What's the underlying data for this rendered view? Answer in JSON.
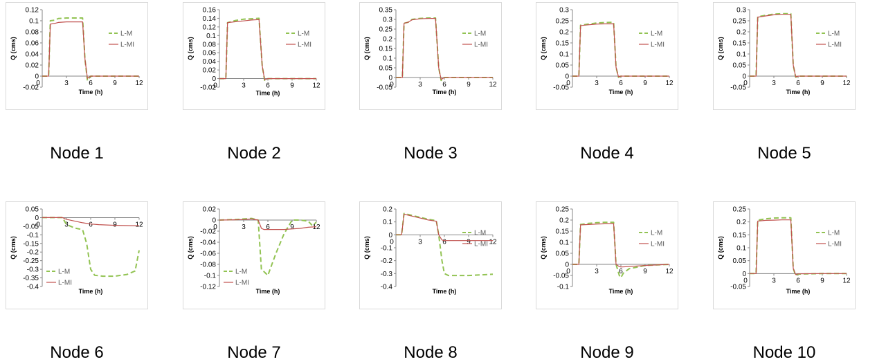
{
  "figure_title": "",
  "chart_data": [
    {
      "type": "line",
      "caption": "Node 1",
      "xlabel": "Time (h)",
      "ylabel": "Q (cms)",
      "xlim": [
        0,
        12
      ],
      "xticks": [
        0,
        3,
        6,
        9,
        12
      ],
      "ylim": [
        -0.02,
        0.12
      ],
      "yticks": [
        -0.02,
        0,
        0.02,
        0.04,
        0.06,
        0.08,
        0.1,
        0.12
      ],
      "yformat": "trim",
      "legend": "right",
      "series": [
        {
          "name": "L-M",
          "color": "#92c353",
          "dash": "7,4",
          "x": [
            0,
            0.8,
            1.0,
            1.5,
            2.0,
            3.0,
            4.0,
            5.0,
            5.3,
            5.6,
            6.0,
            9.0,
            12.0
          ],
          "y": [
            0,
            0,
            0.1,
            0.101,
            0.104,
            0.105,
            0.105,
            0.105,
            0.03,
            -0.008,
            0,
            0,
            0
          ]
        },
        {
          "name": "L-MI",
          "color": "#c0504d",
          "dash": "",
          "x": [
            0,
            0.8,
            1.0,
            1.5,
            2.0,
            3.0,
            4.0,
            5.0,
            5.3,
            5.6,
            6.0,
            9.0,
            12.0
          ],
          "y": [
            0,
            0,
            0.094,
            0.095,
            0.097,
            0.098,
            0.098,
            0.098,
            0.03,
            -0.004,
            0,
            0,
            0
          ]
        }
      ]
    },
    {
      "type": "line",
      "caption": "Node 2",
      "xlabel": "Time (h)",
      "ylabel": "Q (cms)",
      "xlim": [
        0,
        12
      ],
      "xticks": [
        0,
        3,
        6,
        9,
        12
      ],
      "ylim": [
        -0.02,
        0.16
      ],
      "yticks": [
        -0.02,
        0,
        0.02,
        0.04,
        0.06,
        0.08,
        0.1,
        0.12,
        0.14,
        0.16
      ],
      "yformat": "trim",
      "legend": "right",
      "series": [
        {
          "name": "L-M",
          "color": "#92c353",
          "dash": "7,4",
          "x": [
            0,
            0.8,
            1.0,
            2.0,
            3.0,
            4.0,
            4.9,
            5.3,
            5.6,
            6.0,
            9.0,
            12.0
          ],
          "y": [
            0,
            0,
            0.13,
            0.135,
            0.138,
            0.139,
            0.14,
            0.03,
            -0.004,
            0,
            0,
            0
          ]
        },
        {
          "name": "L-MI",
          "color": "#c0504d",
          "dash": "",
          "x": [
            0,
            0.8,
            1.0,
            2.0,
            3.0,
            4.0,
            4.9,
            5.3,
            5.6,
            6.0,
            9.0,
            12.0
          ],
          "y": [
            0,
            0,
            0.13,
            0.132,
            0.134,
            0.136,
            0.137,
            0.03,
            -0.003,
            0,
            0,
            0
          ]
        }
      ]
    },
    {
      "type": "line",
      "caption": "Node 3",
      "xlabel": "Time (h)",
      "ylabel": "Q (cms)",
      "xlim": [
        0,
        12
      ],
      "xticks": [
        0,
        3,
        6,
        9,
        12
      ],
      "ylim": [
        -0.05,
        0.35
      ],
      "yticks": [
        -0.05,
        0,
        0.05,
        0.1,
        0.15,
        0.2,
        0.25,
        0.3,
        0.35
      ],
      "yformat": "trim",
      "legend": "right",
      "series": [
        {
          "name": "L-M",
          "color": "#92c353",
          "dash": "7,4",
          "x": [
            0,
            0.8,
            1.0,
            1.5,
            2.0,
            3.0,
            4.0,
            4.9,
            5.3,
            5.6,
            6.0,
            9.0,
            12.0
          ],
          "y": [
            0,
            0,
            0.28,
            0.285,
            0.3,
            0.305,
            0.307,
            0.307,
            0.05,
            -0.015,
            0,
            0,
            0
          ]
        },
        {
          "name": "L-MI",
          "color": "#c0504d",
          "dash": "",
          "x": [
            0,
            0.8,
            1.0,
            1.5,
            2.0,
            3.0,
            4.0,
            4.9,
            5.3,
            5.6,
            6.0,
            9.0,
            12.0
          ],
          "y": [
            0,
            0,
            0.28,
            0.285,
            0.298,
            0.303,
            0.305,
            0.305,
            0.05,
            -0.01,
            0,
            0,
            0
          ]
        }
      ]
    },
    {
      "type": "line",
      "caption": "Node 4",
      "xlabel": "Time (h)",
      "ylabel": "Q (cms)",
      "xlim": [
        0,
        12
      ],
      "xticks": [
        0,
        3,
        6,
        9,
        12
      ],
      "ylim": [
        -0.05,
        0.3
      ],
      "yticks": [
        -0.05,
        0,
        0.05,
        0.1,
        0.15,
        0.2,
        0.25,
        0.3
      ],
      "yformat": "trim",
      "legend": "right",
      "series": [
        {
          "name": "L-M",
          "color": "#92c353",
          "dash": "7,4",
          "x": [
            0,
            0.8,
            1.0,
            2.0,
            3.0,
            4.0,
            5.1,
            5.4,
            5.7,
            6.0,
            9.0,
            12.0
          ],
          "y": [
            0,
            0,
            0.23,
            0.235,
            0.24,
            0.242,
            0.243,
            0.04,
            -0.005,
            0,
            0,
            0
          ]
        },
        {
          "name": "L-MI",
          "color": "#c0504d",
          "dash": "",
          "x": [
            0,
            0.8,
            1.0,
            2.0,
            3.0,
            4.0,
            5.1,
            5.4,
            5.7,
            6.0,
            9.0,
            12.0
          ],
          "y": [
            0,
            0,
            0.228,
            0.232,
            0.235,
            0.236,
            0.236,
            0.04,
            -0.003,
            0,
            0,
            0
          ]
        }
      ]
    },
    {
      "type": "line",
      "caption": "Node 5",
      "xlabel": "Time (h)",
      "ylabel": "Q (cms)",
      "xlim": [
        0,
        12
      ],
      "xticks": [
        0,
        3,
        6,
        9,
        12
      ],
      "ylim": [
        -0.05,
        0.3
      ],
      "yticks": [
        -0.05,
        0,
        0.05,
        0.1,
        0.15,
        0.2,
        0.25,
        0.3
      ],
      "yformat": "trim",
      "legend": "right",
      "series": [
        {
          "name": "L-M",
          "color": "#92c353",
          "dash": "7,4",
          "x": [
            0,
            0.8,
            1.0,
            2.0,
            3.0,
            4.0,
            5.1,
            5.4,
            5.7,
            6.0,
            9.0,
            12.0
          ],
          "y": [
            0,
            0,
            0.268,
            0.275,
            0.28,
            0.282,
            0.282,
            0.05,
            -0.005,
            0,
            0,
            0
          ]
        },
        {
          "name": "L-MI",
          "color": "#c0504d",
          "dash": "",
          "x": [
            0,
            0.8,
            1.0,
            2.0,
            3.0,
            4.0,
            5.1,
            5.4,
            5.7,
            6.0,
            9.0,
            12.0
          ],
          "y": [
            0,
            0,
            0.266,
            0.272,
            0.277,
            0.279,
            0.279,
            0.05,
            -0.003,
            0,
            0,
            0
          ]
        }
      ]
    },
    {
      "type": "line",
      "caption": "Node 6",
      "xlabel": "Time (h)",
      "ylabel": "Q (cms)",
      "xlim": [
        0,
        12
      ],
      "xticks": [
        0,
        3,
        6,
        9,
        12
      ],
      "ylim": [
        -0.4,
        0.05
      ],
      "yticks": [
        -0.4,
        -0.35,
        -0.3,
        -0.25,
        -0.2,
        -0.15,
        -0.1,
        -0.05,
        0,
        0.05
      ],
      "yformat": "trim",
      "legend": "bottom-left",
      "series": [
        {
          "name": "L-M",
          "color": "#92c353",
          "dash": "7,4",
          "x": [
            0,
            2.5,
            3.0,
            4.0,
            5.0,
            5.5,
            6.0,
            6.5,
            7.5,
            9.0,
            10.5,
            11.5,
            12.0
          ],
          "y": [
            0,
            0,
            -0.04,
            -0.06,
            -0.07,
            -0.15,
            -0.3,
            -0.335,
            -0.34,
            -0.34,
            -0.33,
            -0.31,
            -0.19
          ]
        },
        {
          "name": "L-MI",
          "color": "#c0504d",
          "dash": "",
          "x": [
            0,
            2.5,
            3.0,
            4.0,
            5.0,
            6.0,
            7.0,
            8.0,
            9.0,
            10.0,
            11.0,
            12.0
          ],
          "y": [
            0,
            0,
            -0.01,
            -0.02,
            -0.03,
            -0.037,
            -0.041,
            -0.043,
            -0.045,
            -0.046,
            -0.047,
            -0.047
          ]
        }
      ]
    },
    {
      "type": "line",
      "caption": "Node 7",
      "xlabel": "Time (h)",
      "ylabel": "Q (cms)",
      "xlim": [
        0,
        12
      ],
      "xticks": [
        0,
        3,
        6,
        9,
        12
      ],
      "ylim": [
        -0.12,
        0.02
      ],
      "yticks": [
        -0.12,
        -0.1,
        -0.08,
        -0.06,
        -0.04,
        -0.02,
        0,
        0.02
      ],
      "yformat": "trim",
      "legend": "bottom-left",
      "series": [
        {
          "name": "L-M",
          "color": "#92c353",
          "dash": "7,4",
          "x": [
            0,
            2.0,
            3.0,
            4.0,
            4.8,
            5.2,
            5.5,
            6.0,
            6.5,
            7.0,
            8.0,
            9.0,
            10.0,
            11.0,
            11.5,
            12.0
          ],
          "y": [
            0,
            0.001,
            0.002,
            0.003,
            0.0,
            -0.09,
            -0.093,
            -0.1,
            -0.08,
            -0.06,
            -0.025,
            0,
            0,
            -0.002,
            -0.01,
            -0.004
          ]
        },
        {
          "name": "L-MI",
          "color": "#c0504d",
          "dash": "",
          "x": [
            0,
            2.0,
            3.0,
            4.0,
            4.8,
            5.2,
            5.5,
            6.0,
            7.0,
            8.0,
            9.0,
            10.0,
            11.0,
            12.0
          ],
          "y": [
            0,
            0.0005,
            0.001,
            0.002,
            0.0,
            -0.015,
            -0.017,
            -0.017,
            -0.017,
            -0.017,
            -0.016,
            -0.015,
            -0.013,
            -0.012
          ]
        }
      ]
    },
    {
      "type": "line",
      "caption": "Node 8",
      "xlabel": "Time (h)",
      "ylabel": "Q (cms)",
      "xlim": [
        0,
        12
      ],
      "xticks": [
        0,
        3,
        6,
        9,
        12
      ],
      "ylim": [
        -0.4,
        0.2
      ],
      "yticks": [
        -0.4,
        -0.3,
        -0.2,
        -0.1,
        0,
        0.1,
        0.2
      ],
      "yformat": "trim",
      "legend": "right",
      "series": [
        {
          "name": "L-M",
          "color": "#92c353",
          "dash": "7,4",
          "x": [
            0,
            0.7,
            1.0,
            2.0,
            3.0,
            4.0,
            5.0,
            5.3,
            5.7,
            6.0,
            6.5,
            9.0,
            12.0
          ],
          "y": [
            0,
            0,
            0.165,
            0.15,
            0.135,
            0.12,
            0.11,
            0.0,
            -0.2,
            -0.3,
            -0.315,
            -0.315,
            -0.305
          ]
        },
        {
          "name": "L-MI",
          "color": "#c0504d",
          "dash": "",
          "x": [
            0,
            0.7,
            1.0,
            2.0,
            3.0,
            4.0,
            5.0,
            5.3,
            5.7,
            6.0,
            9.0,
            12.0
          ],
          "y": [
            0,
            0,
            0.16,
            0.145,
            0.13,
            0.115,
            0.105,
            0.0,
            -0.04,
            -0.045,
            -0.045,
            -0.045
          ]
        }
      ]
    },
    {
      "type": "line",
      "caption": "Node 9",
      "xlabel": "Time (h)",
      "ylabel": "Q (cms)",
      "xlim": [
        0,
        12
      ],
      "xticks": [
        0,
        3,
        6,
        9,
        12
      ],
      "ylim": [
        -0.1,
        0.25
      ],
      "yticks": [
        -0.1,
        -0.05,
        0,
        0.05,
        0.1,
        0.15,
        0.2,
        0.25
      ],
      "yformat": "trim",
      "legend": "right",
      "series": [
        {
          "name": "L-M",
          "color": "#92c353",
          "dash": "7,4",
          "x": [
            0,
            0.8,
            1.0,
            2.0,
            3.0,
            4.0,
            5.1,
            5.4,
            5.8,
            6.0,
            6.3,
            7.0,
            9.0,
            12.0
          ],
          "y": [
            0,
            0,
            0.18,
            0.185,
            0.188,
            0.19,
            0.19,
            0.0,
            -0.05,
            -0.06,
            -0.04,
            -0.02,
            -0.005,
            0
          ]
        },
        {
          "name": "L-MI",
          "color": "#c0504d",
          "dash": "",
          "x": [
            0,
            0.8,
            1.0,
            2.0,
            3.0,
            4.0,
            5.1,
            5.4,
            5.8,
            6.0,
            7.0,
            9.0,
            12.0
          ],
          "y": [
            0,
            0,
            0.178,
            0.18,
            0.182,
            0.183,
            0.183,
            0.0,
            -0.01,
            -0.012,
            -0.01,
            -0.005,
            0
          ]
        }
      ]
    },
    {
      "type": "line",
      "caption": "Node 10",
      "xlabel": "Time (h)",
      "ylabel": "Q (cms)",
      "xlim": [
        0,
        12
      ],
      "xticks": [
        0,
        3,
        6,
        9,
        12
      ],
      "ylim": [
        -0.05,
        0.25
      ],
      "yticks": [
        -0.05,
        0,
        0.05,
        0.1,
        0.15,
        0.2,
        0.25
      ],
      "yformat": "trim",
      "legend": "right",
      "series": [
        {
          "name": "L-M",
          "color": "#92c353",
          "dash": "7,4",
          "x": [
            0,
            0.8,
            1.0,
            2.0,
            3.0,
            4.0,
            5.1,
            5.4,
            5.7,
            6.0,
            9.0,
            12.0
          ],
          "y": [
            0,
            0,
            0.207,
            0.212,
            0.215,
            0.216,
            0.216,
            0.02,
            -0.008,
            -0.002,
            0,
            0
          ]
        },
        {
          "name": "L-MI",
          "color": "#c0504d",
          "dash": "",
          "x": [
            0,
            0.8,
            1.0,
            2.0,
            3.0,
            4.0,
            5.1,
            5.4,
            5.7,
            6.0,
            9.0,
            12.0
          ],
          "y": [
            0,
            0,
            0.203,
            0.206,
            0.207,
            0.208,
            0.208,
            0.02,
            -0.004,
            -0.001,
            0,
            0
          ]
        }
      ]
    }
  ]
}
